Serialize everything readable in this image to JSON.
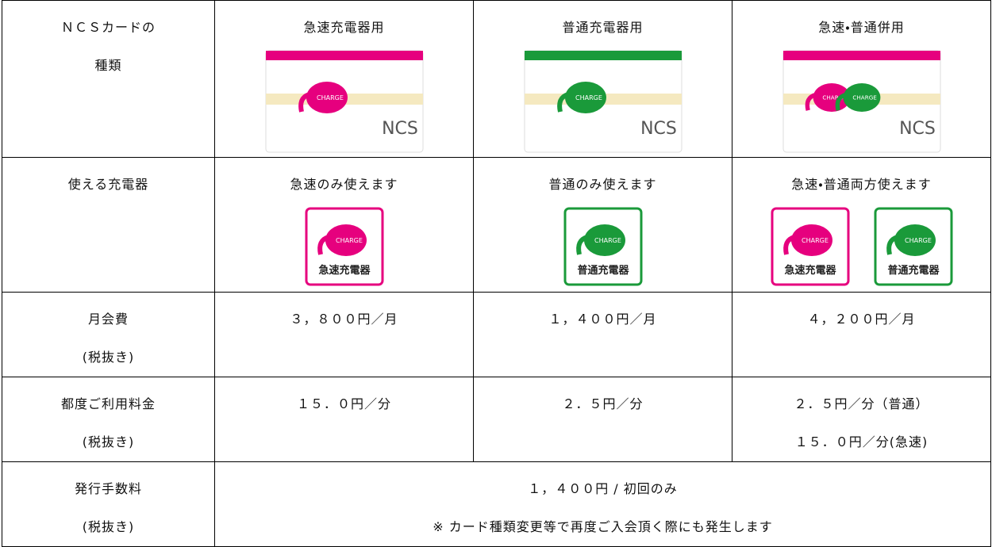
{
  "table": {
    "rows": [
      [
        [
          "ＮＣＳカードの",
          "種類"
        ],
        [
          "急速充電器用"
        ],
        [
          "普通充電器用"
        ],
        [
          "急速・普通併用"
        ]
      ],
      [
        [
          "使える充電器"
        ],
        [
          "急速のみ使えます"
        ],
        [
          "普通のみ使えます"
        ],
        [
          "急速・普通両方使えます"
        ]
      ],
      [
        [
          "月会費",
          "(税抜き)"
        ],
        [
          "３，８００円／月"
        ],
        [
          "１，４００円／月"
        ],
        [
          "４，２００円／月"
        ]
      ],
      [
        [
          "都度ご利用料金",
          "(税抜き)"
        ],
        [
          "１５．０円／分"
        ],
        [
          "２．５円／分"
        ],
        [
          "２．５円／分（普通）",
          "１５．０円／分(急速)"
        ]
      ],
      [
        [
          "発行手数料",
          "(税抜き)"
        ],
        [
          "１，４００円 / 初回のみ",
          "※ カード種類変更等で再度ご入会頂く際にも発生します"
        ]
      ]
    ],
    "badges": [
      "急速充電器",
      "普通充電器"
    ],
    "card_brand": "NCS",
    "logo_text": "CHARGE"
  }
}
